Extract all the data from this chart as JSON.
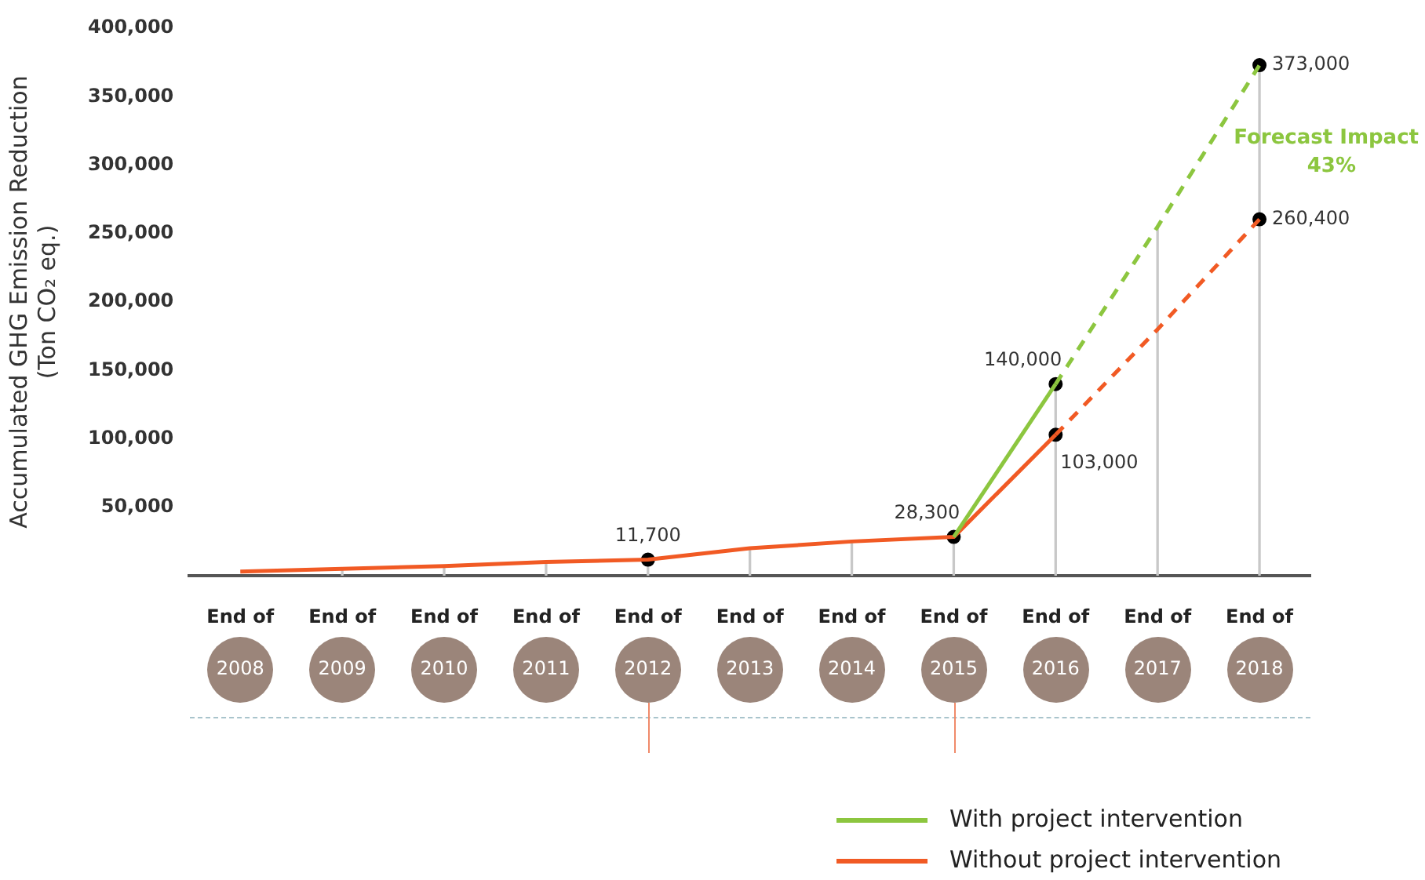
{
  "chart_data": {
    "type": "line",
    "ylabel": "Accumulated GHG Emission Reduction (Ton CO₂ eq.)",
    "categories": [
      "End of 2008",
      "End of 2009",
      "End of 2010",
      "End of 2011",
      "End of 2012",
      "End of 2013",
      "End of 2014",
      "End of 2015",
      "End of 2016",
      "End of 2017",
      "End of 2018"
    ],
    "series": [
      {
        "name": "With project intervention",
        "color": "#8cc63f",
        "line_style": "solid",
        "values": [
          null,
          null,
          null,
          null,
          null,
          null,
          null,
          28300,
          140000,
          null,
          null
        ]
      },
      {
        "color": "#8cc63f",
        "line_style": "dashed",
        "values": [
          null,
          null,
          null,
          null,
          null,
          null,
          null,
          null,
          140000,
          255000,
          373000
        ]
      },
      {
        "name": "Without project intervention",
        "color": "#f15a24",
        "line_style": "solid",
        "values": [
          3000,
          5000,
          7000,
          10000,
          11700,
          20000,
          25000,
          28300,
          103000,
          null,
          null
        ]
      },
      {
        "color": "#f15a24",
        "line_style": "dashed",
        "values": [
          null,
          null,
          null,
          null,
          null,
          null,
          null,
          null,
          103000,
          180000,
          260400
        ]
      },
      {
        "type": "bar",
        "color": "#c8c8c8",
        "values": [
          null,
          5000,
          7000,
          10000,
          11700,
          20000,
          25000,
          28300,
          140000,
          255000,
          373000
        ]
      },
      {
        "type": "scatter",
        "color": "#000000",
        "marker": "circle",
        "x": [
          "End of 2012",
          "End of 2015",
          "End of 2016",
          "End of 2016",
          "End of 2018",
          "End of 2018"
        ],
        "values": [
          11700,
          28300,
          140000,
          103000,
          373000,
          260400
        ],
        "value_labels": [
          "11,700",
          "28,300",
          "140,000",
          "103,000",
          "373,000",
          "260,400"
        ]
      }
    ],
    "ylim": [
      0,
      400000
    ],
    "yticks": [
      {
        "value": 50000,
        "label": "50,000"
      },
      {
        "value": 100000,
        "label": "100,000"
      },
      {
        "value": 150000,
        "label": "150,000"
      },
      {
        "value": 200000,
        "label": "200,000"
      },
      {
        "value": 250000,
        "label": "250,000"
      },
      {
        "value": 300000,
        "label": "300,000"
      },
      {
        "value": 350000,
        "label": "350,000"
      },
      {
        "value": 400000,
        "label": "400,000"
      }
    ],
    "annotations": [
      "Forecast Impact 43%"
    ],
    "marker": "none",
    "grid": false,
    "legend": "bottom right"
  }
}
